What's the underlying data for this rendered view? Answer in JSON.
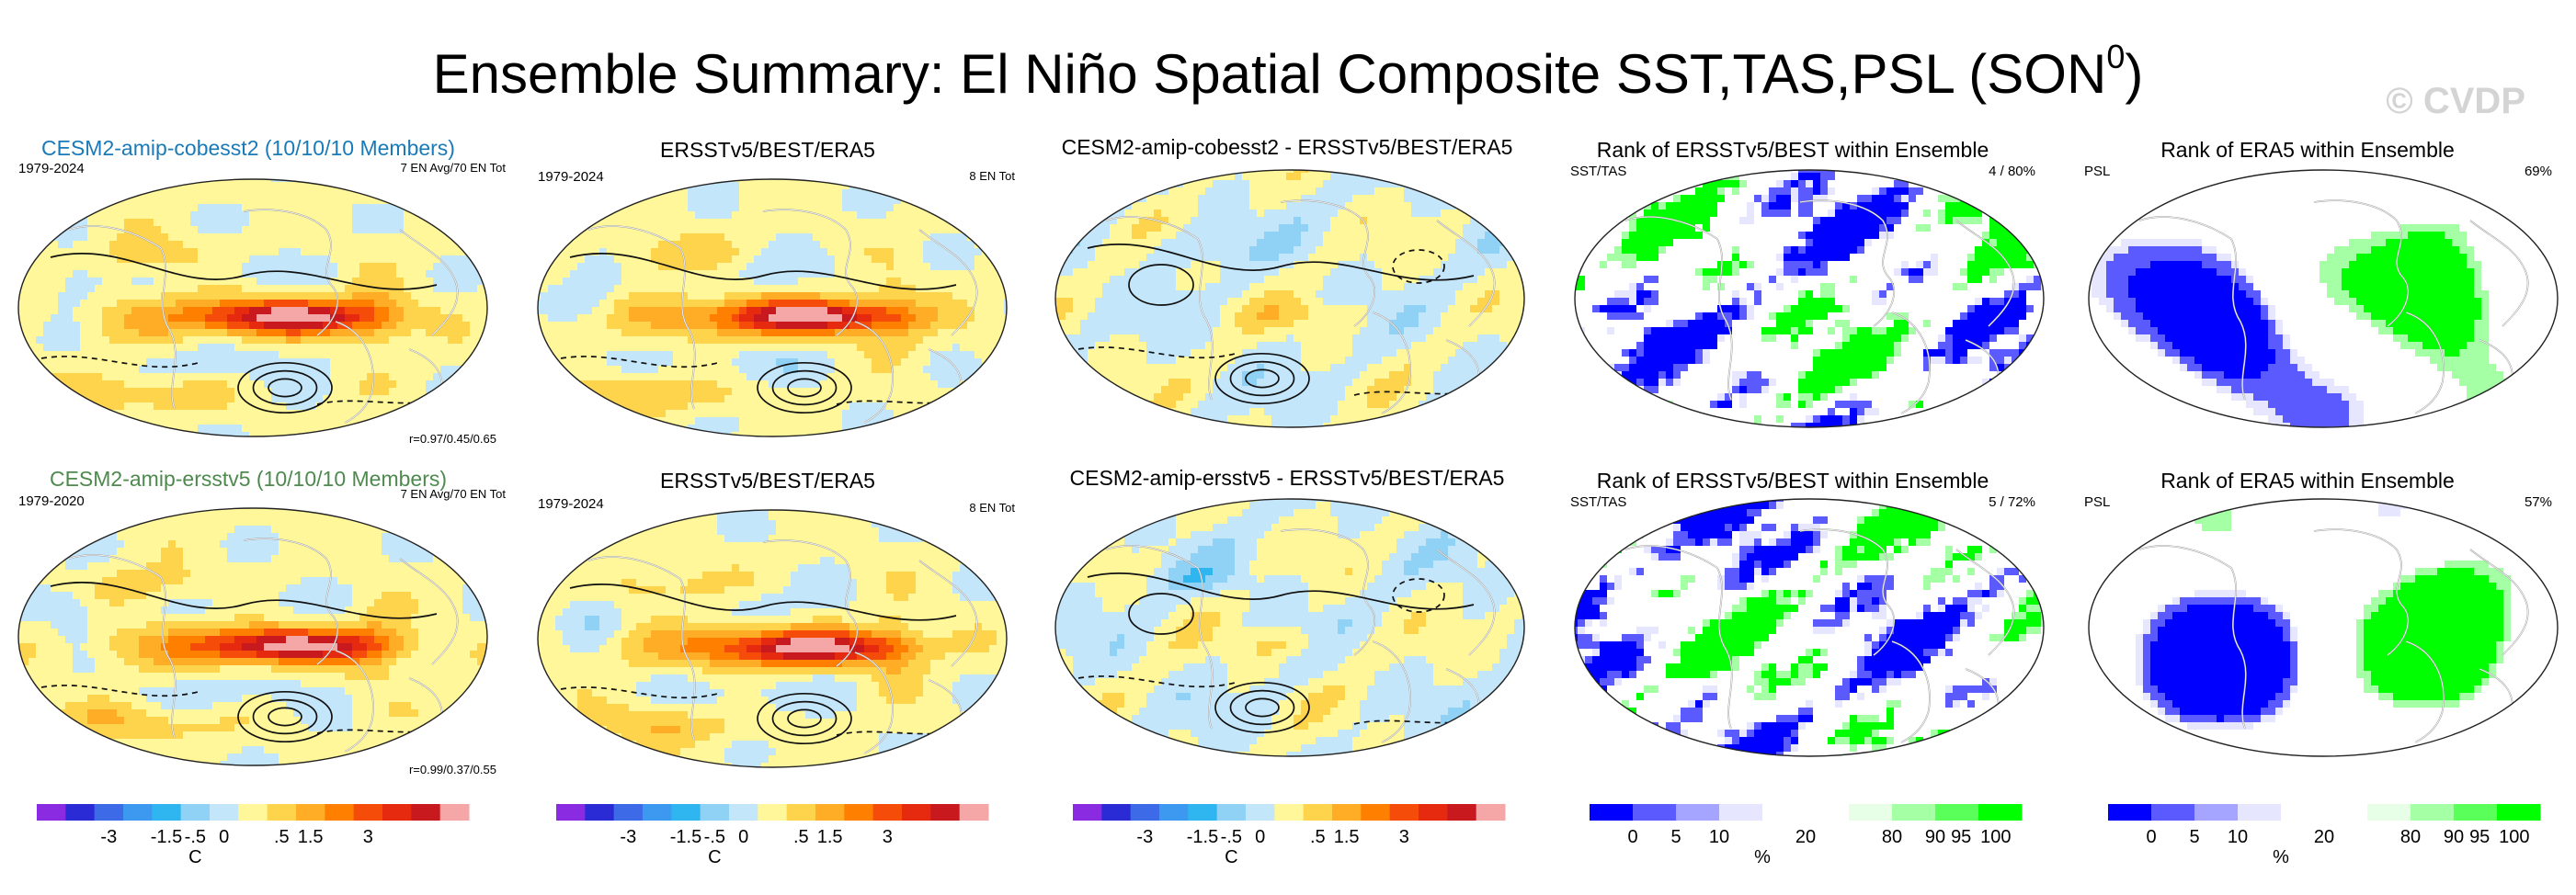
{
  "title": {
    "main": "Ensemble Summary: El Niño Spatial Composite SST,TAS,PSL (SON",
    "superscript": "0",
    "close": ")"
  },
  "watermark": "© CVDP",
  "colors": {
    "cesm_title_1": "#1a7ab8",
    "cesm_title_2": "#4e8a4e",
    "diverging": [
      "#8a2be2",
      "#2b2bd6",
      "#3d6be8",
      "#3d98f0",
      "#2fb6f0",
      "#8fd2f5",
      "#c4e6fa",
      "#fff799",
      "#ffd44d",
      "#ffad26",
      "#ff7f00",
      "#f54c0a",
      "#e52a10",
      "#c8191e",
      "#f5a6a6"
    ],
    "rank": [
      "#0000ff",
      "#5a5aff",
      "#a5a5ff",
      "#e6e6ff",
      "#ffffff",
      "#ffffff",
      "#e6ffe6",
      "#a5ffa5",
      "#5aff5a",
      "#00ff00"
    ]
  },
  "panels": [
    {
      "id": "r1c1",
      "title": "CESM2-amip-cobesst2 (10/10/10 Members)",
      "left": "1979-2024",
      "right": "7 EN Avg/70 EN Tot",
      "bottom_right": "r=0.97/0.45/0.65",
      "kind": "sst"
    },
    {
      "id": "r1c2",
      "title": "ERSSTv5/BEST/ERA5",
      "left": "1979-2024",
      "right": "8 EN Tot",
      "kind": "sst"
    },
    {
      "id": "r1c3",
      "title": "CESM2-amip-cobesst2 - ERSSTv5/BEST/ERA5",
      "kind": "diff"
    },
    {
      "id": "r1c4",
      "title": "Rank of ERSSTv5/BEST within Ensemble",
      "left": "SST/TAS",
      "right": "4 /  80%",
      "kind": "rank"
    },
    {
      "id": "r1c5",
      "title": "Rank of ERA5 within Ensemble",
      "left": "PSL",
      "right": "69%",
      "kind": "rankpsl"
    },
    {
      "id": "r2c1",
      "title": "CESM2-amip-ersstv5 (10/10/10 Members)",
      "left": "1979-2020",
      "right": "7 EN Avg/70 EN Tot",
      "bottom_right": "r=0.99/0.37/0.55",
      "kind": "sst"
    },
    {
      "id": "r2c2",
      "title": "ERSSTv5/BEST/ERA5",
      "left": "1979-2024",
      "right": "8 EN Tot",
      "kind": "sst"
    },
    {
      "id": "r2c3",
      "title": "CESM2-amip-ersstv5 - ERSSTv5/BEST/ERA5",
      "kind": "diff"
    },
    {
      "id": "r2c4",
      "title": "Rank of ERSSTv5/BEST within Ensemble",
      "left": "SST/TAS",
      "right": "5 /  72%",
      "kind": "rank"
    },
    {
      "id": "r2c5",
      "title": "Rank of ERA5 within Ensemble",
      "left": "PSL",
      "right": "57%",
      "kind": "rankpsl"
    }
  ],
  "colorbars": {
    "diverging": {
      "ticks": [
        "-3",
        "-1.5",
        "-.5",
        "0",
        ".5",
        "1.5",
        "3"
      ],
      "unit": "C"
    },
    "rank": {
      "ticks": [
        "0",
        "5",
        "10",
        "20",
        "80",
        "90",
        "95",
        "100"
      ],
      "unit": "%"
    }
  },
  "chart_data": {
    "type": "heatmap",
    "title": "Ensemble Summary: El Niño Spatial Composite SST,TAS,PSL (SON0)",
    "panels": [
      "CESM2-amip-cobesst2 (10/10/10 Members)",
      "ERSSTv5/BEST/ERA5",
      "CESM2-amip-cobesst2 - ERSSTv5/BEST/ERA5",
      "Rank of ERSSTv5/BEST within Ensemble",
      "Rank of ERA5 within Ensemble",
      "CESM2-amip-ersstv5 (10/10/10 Members)",
      "ERSSTv5/BEST/ERA5",
      "CESM2-amip-ersstv5 - ERSSTv5/BEST/ERA5",
      "Rank of ERSSTv5/BEST within Ensemble",
      "Rank of ERA5 within Ensemble"
    ],
    "diverging_colorbar": {
      "unit": "C",
      "tick_labels": [
        -3,
        -1.5,
        -0.5,
        0,
        0.5,
        1.5,
        3
      ]
    },
    "rank_colorbar": {
      "unit": "%",
      "tick_labels": [
        0,
        5,
        10,
        20,
        80,
        90,
        95,
        100
      ]
    },
    "pattern_correlations": {
      "CESM2-amip-cobesst2": [
        0.97,
        0.45,
        0.65
      ],
      "CESM2-amip-ersstv5": [
        0.99,
        0.37,
        0.55
      ]
    },
    "rank": {
      "row1": {
        "sst_tas_rank": 4,
        "sst_tas_percent": 80,
        "psl_percent": 69
      },
      "row2": {
        "sst_tas_rank": 5,
        "sst_tas_percent": 72,
        "psl_percent": 57
      }
    },
    "el_nino_events": {
      "model_avg": 7,
      "model_total": 70,
      "observed_total": 8
    }
  }
}
